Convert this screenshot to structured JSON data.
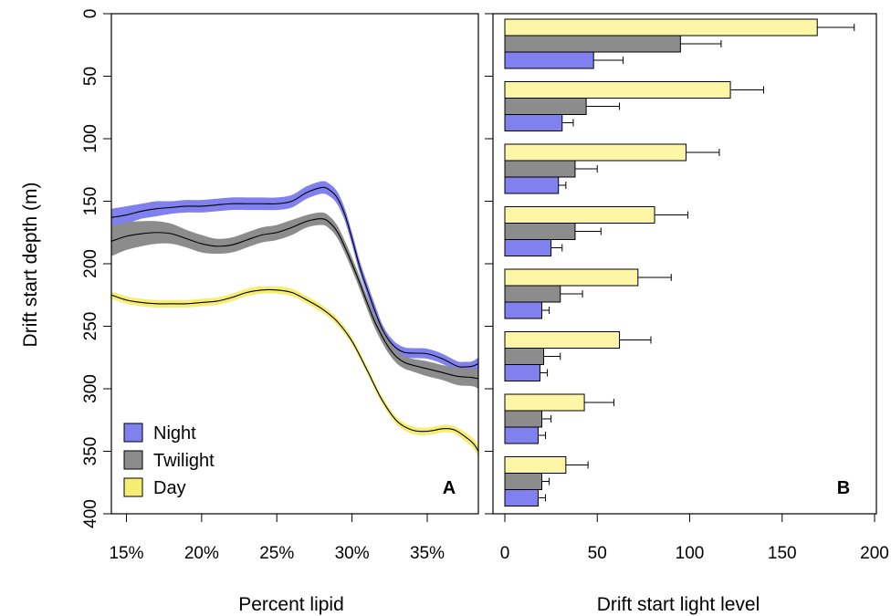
{
  "chart_data": [
    {
      "panel": "A",
      "type": "line",
      "xlabel": "Percent lipid",
      "ylabel": "Drift start depth (m)",
      "xlim": [
        14,
        38.4
      ],
      "ylim": [
        0,
        400
      ],
      "y_reversed": true,
      "x_ticks": [
        15,
        20,
        25,
        30,
        35
      ],
      "x_tick_labels": [
        "15%",
        "20%",
        "25%",
        "30%",
        "35%"
      ],
      "y_ticks": [
        0,
        50,
        100,
        150,
        200,
        250,
        300,
        350,
        400
      ],
      "y_tick_labels": [
        "0",
        "50",
        "100",
        "150",
        "200",
        "250",
        "300",
        "350",
        "400"
      ],
      "panel_label": "A",
      "legend": {
        "position": "bottom-left",
        "entries": [
          {
            "name": "Night",
            "color": "#8080ee"
          },
          {
            "name": "Twilight",
            "color": "#8c8c8c"
          },
          {
            "name": "Day",
            "color": "#f5ee72"
          }
        ]
      },
      "series": [
        {
          "name": "Night",
          "color": "#8080ee",
          "points": [
            [
              14,
              163
            ],
            [
              15,
              161
            ],
            [
              16,
              158
            ],
            [
              17,
              156
            ],
            [
              18,
              155
            ],
            [
              19,
              154
            ],
            [
              20,
              154
            ],
            [
              21,
              153
            ],
            [
              22,
              152
            ],
            [
              23,
              152
            ],
            [
              24,
              152
            ],
            [
              25,
              152
            ],
            [
              26,
              150
            ],
            [
              27,
              143
            ],
            [
              28,
              139
            ],
            [
              28.5,
              141
            ],
            [
              29,
              147
            ],
            [
              29.5,
              160
            ],
            [
              30,
              180
            ],
            [
              30.5,
              202
            ],
            [
              31,
              220
            ],
            [
              31.5,
              237
            ],
            [
              32,
              252
            ],
            [
              32.5,
              262
            ],
            [
              33,
              268
            ],
            [
              33.5,
              271
            ],
            [
              34,
              271.5
            ],
            [
              35,
              272
            ],
            [
              36,
              276
            ],
            [
              37,
              282
            ],
            [
              37.5,
              282.5
            ],
            [
              38,
              282
            ],
            [
              38.4,
              280
            ]
          ],
          "band": [
            7,
            7,
            6,
            6,
            5,
            5,
            5,
            5,
            5,
            5,
            5,
            5,
            5,
            5,
            5,
            5,
            5,
            5,
            5,
            5,
            5,
            5,
            4,
            4,
            4,
            4,
            4,
            4,
            4,
            4,
            4,
            4,
            5
          ]
        },
        {
          "name": "Twilight",
          "color": "#8c8c8c",
          "points": [
            [
              14,
              182
            ],
            [
              15,
              178
            ],
            [
              16,
              176
            ],
            [
              17,
              175
            ],
            [
              18,
              176
            ],
            [
              19,
              180
            ],
            [
              20,
              184
            ],
            [
              21,
              186
            ],
            [
              22,
              185
            ],
            [
              23,
              181
            ],
            [
              24,
              177
            ],
            [
              25,
              175
            ],
            [
              26,
              171
            ],
            [
              27,
              166
            ],
            [
              28,
              164
            ],
            [
              28.5,
              167
            ],
            [
              29,
              174
            ],
            [
              29.5,
              186
            ],
            [
              30,
              200
            ],
            [
              30.5,
              215
            ],
            [
              31,
              231
            ],
            [
              31.5,
              246
            ],
            [
              32,
              258
            ],
            [
              32.5,
              268
            ],
            [
              33,
              275
            ],
            [
              33.5,
              279
            ],
            [
              34,
              281
            ],
            [
              35,
              284
            ],
            [
              36,
              287
            ],
            [
              37,
              290
            ],
            [
              38,
              291
            ],
            [
              38.4,
              292
            ]
          ],
          "band": [
            12,
            11,
            10,
            9,
            8,
            7,
            7,
            6,
            6,
            6,
            6,
            6,
            6,
            5,
            5,
            5,
            5,
            5,
            5,
            5,
            5,
            5,
            5,
            5,
            5,
            5,
            5,
            6,
            6,
            7,
            7,
            8
          ]
        },
        {
          "name": "Day",
          "color": "#f5ee72",
          "points": [
            [
              14,
              225
            ],
            [
              15,
              229
            ],
            [
              16,
              231
            ],
            [
              17,
              232
            ],
            [
              18,
              232
            ],
            [
              19,
              232
            ],
            [
              20,
              231
            ],
            [
              21,
              230
            ],
            [
              22,
              227
            ],
            [
              23,
              223
            ],
            [
              24,
              221
            ],
            [
              25,
              221
            ],
            [
              26,
              223
            ],
            [
              27,
              229
            ],
            [
              28,
              236
            ],
            [
              29,
              246
            ],
            [
              30,
              262
            ],
            [
              31,
              285
            ],
            [
              32,
              309
            ],
            [
              33,
              326
            ],
            [
              34,
              333
            ],
            [
              35,
              334
            ],
            [
              36,
              332
            ],
            [
              36.5,
              332
            ],
            [
              37,
              334
            ],
            [
              38,
              343
            ],
            [
              38.4,
              350
            ]
          ],
          "band": [
            3,
            3,
            3,
            3,
            3,
            3,
            3,
            3,
            3,
            3,
            3,
            3,
            3,
            3,
            3,
            3,
            3,
            3,
            3,
            3,
            3,
            3,
            3,
            3,
            3,
            4,
            4
          ]
        }
      ]
    },
    {
      "panel": "B",
      "type": "bar",
      "orientation": "horizontal",
      "xlabel": "Drift start light level",
      "xlim": [
        0,
        200
      ],
      "x_ticks": [
        0,
        50,
        100,
        150,
        200
      ],
      "x_tick_labels": [
        "0",
        "50",
        "100",
        "150",
        "200"
      ],
      "ylim": [
        0,
        400
      ],
      "y_reversed": true,
      "categories": [
        "0-50",
        "50-100",
        "100-150",
        "150-200",
        "200-250",
        "250-300",
        "300-350",
        "350-400"
      ],
      "panel_label": "B",
      "series": [
        {
          "name": "Day",
          "color": "#fdf6a6",
          "values": [
            169,
            122,
            98,
            81,
            72,
            62,
            43,
            33
          ],
          "error": [
            20,
            18,
            18,
            18,
            18,
            17,
            16,
            12
          ]
        },
        {
          "name": "Twilight",
          "color": "#8c8c8c",
          "values": [
            95,
            44,
            38,
            38,
            30,
            21,
            20,
            20
          ],
          "error": [
            22,
            18,
            12,
            14,
            12,
            9,
            5,
            4
          ]
        },
        {
          "name": "Night",
          "color": "#8080ee",
          "values": [
            48,
            31,
            29,
            25,
            20,
            19,
            18,
            18
          ],
          "error": [
            16,
            6,
            4,
            6,
            4,
            4,
            4,
            4
          ]
        }
      ]
    }
  ]
}
